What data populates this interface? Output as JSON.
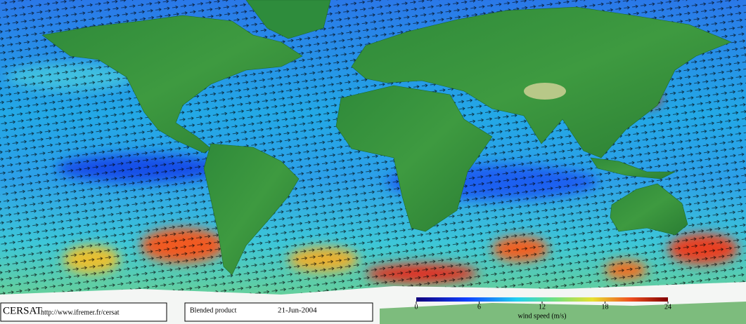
{
  "footer": {
    "logo": "CERSAT",
    "url": "http://www.ifremer.fr/cersat",
    "product": "Blended product",
    "date": "21-Jun-2004"
  },
  "colorbar": {
    "label": "wind speed (m/s)",
    "range": [
      0,
      24
    ],
    "ticks": [
      0,
      6,
      12,
      18,
      24
    ]
  }
}
